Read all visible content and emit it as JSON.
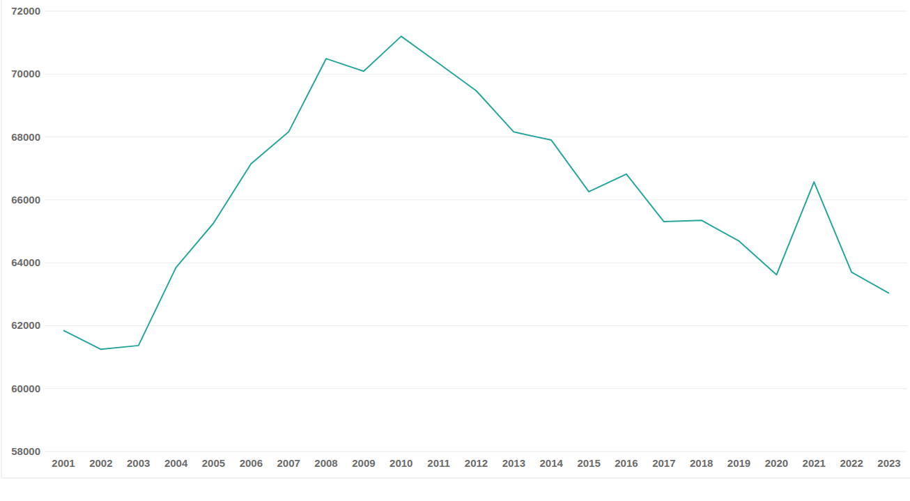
{
  "chart_data": {
    "type": "line",
    "categories": [
      "2001",
      "2002",
      "2003",
      "2004",
      "2005",
      "2006",
      "2007",
      "2008",
      "2009",
      "2010",
      "2011",
      "2012",
      "2013",
      "2014",
      "2015",
      "2016",
      "2017",
      "2018",
      "2019",
      "2020",
      "2021",
      "2022",
      "2023"
    ],
    "values": [
      61850,
      61250,
      61370,
      63850,
      65260,
      67150,
      68160,
      70490,
      70090,
      71200,
      70340,
      69470,
      68160,
      67900,
      66260,
      66820,
      65310,
      65350,
      64690,
      63620,
      66570,
      63700,
      63030
    ],
    "color": "#26a69a",
    "ylim": [
      58000,
      72000
    ],
    "yticks": [
      58000,
      60000,
      62000,
      64000,
      66000,
      68000,
      70000,
      72000
    ],
    "grid": true
  }
}
